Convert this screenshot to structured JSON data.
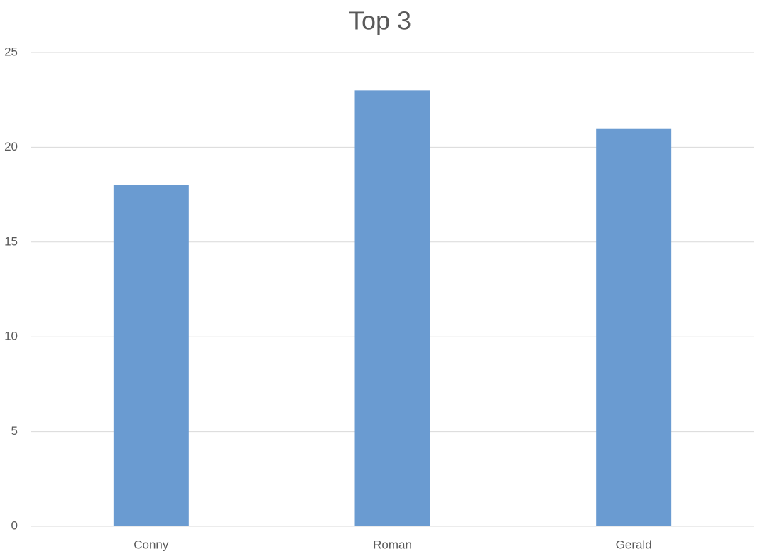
{
  "chart_data": {
    "type": "bar",
    "title": "Top 3",
    "categories": [
      "Conny",
      "Roman",
      "Gerald"
    ],
    "values": [
      18,
      23,
      21
    ],
    "color": "#6a9bd1",
    "ylim": [
      0,
      25
    ],
    "yticks": [
      0,
      5,
      10,
      15,
      20,
      25
    ],
    "grid": true
  }
}
